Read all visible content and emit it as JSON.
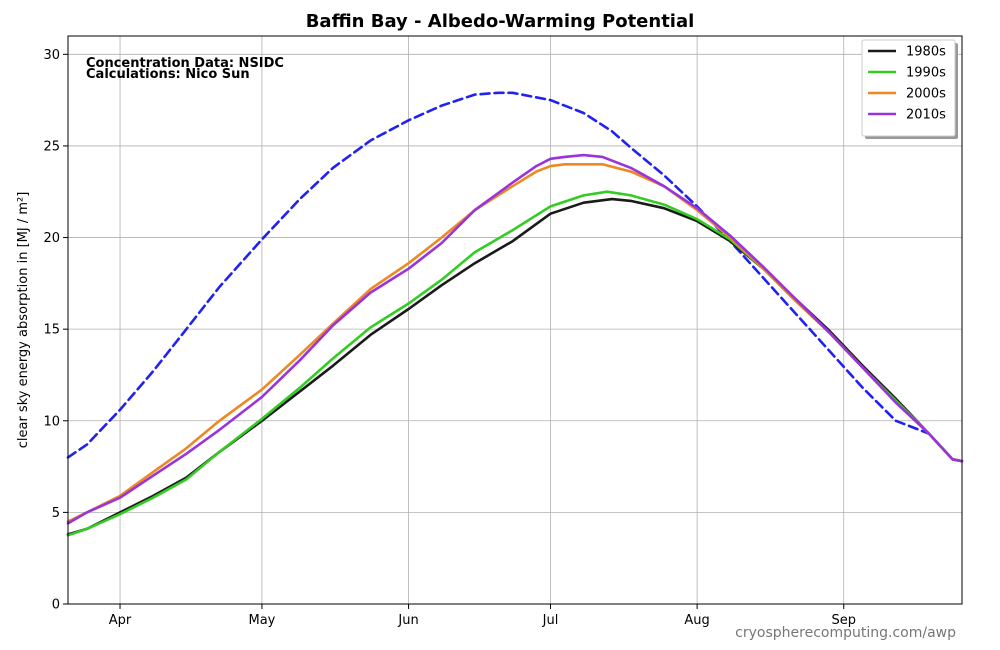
{
  "chart_data": {
    "type": "line",
    "title": "Baffin Bay - Albedo-Warming Potential",
    "ylabel": "clear sky energy absorption in  [MJ / m²]",
    "xlabel": "",
    "ylim": [
      0,
      31
    ],
    "yticks": [
      0,
      5,
      10,
      15,
      20,
      25,
      30
    ],
    "xlim_day_of_year": [
      81,
      270
    ],
    "xticks": [
      {
        "label": "Apr",
        "day": 92
      },
      {
        "label": "May",
        "day": 122
      },
      {
        "label": "Jun",
        "day": 153
      },
      {
        "label": "Jul",
        "day": 183
      },
      {
        "label": "Aug",
        "day": 214
      },
      {
        "label": "Sep",
        "day": 245
      }
    ],
    "grid": true,
    "legend_position": "top-right",
    "annotations": [
      "Concentration Data: NSIDC",
      "Calculations: Nico Sun"
    ],
    "credit": "cryospherecomputing.com/awp",
    "series": [
      {
        "name": "1980s",
        "color": "#1a1a1a",
        "dashed": false,
        "show_in_legend": true,
        "x": [
          81,
          85,
          92,
          99,
          106,
          113,
          122,
          130,
          137,
          145,
          153,
          160,
          167,
          175,
          183,
          190,
          196,
          200,
          207,
          214,
          221,
          228,
          235,
          242,
          249,
          256,
          263,
          268,
          270
        ],
        "y": [
          3.8,
          4.1,
          5.0,
          5.9,
          6.9,
          8.3,
          10.0,
          11.6,
          13.0,
          14.7,
          16.1,
          17.4,
          18.6,
          19.8,
          21.3,
          21.9,
          22.1,
          22.0,
          21.6,
          20.9,
          19.8,
          18.3,
          16.6,
          14.9,
          13.0,
          11.2,
          9.3,
          7.9,
          7.8
        ]
      },
      {
        "name": "1990s",
        "color": "#33cc22",
        "dashed": false,
        "show_in_legend": true,
        "x": [
          81,
          85,
          92,
          99,
          106,
          113,
          122,
          130,
          137,
          145,
          153,
          160,
          167,
          175,
          183,
          190,
          195,
          200,
          207,
          214,
          221,
          228,
          235,
          242,
          249,
          256,
          263,
          268,
          270
        ],
        "y": [
          3.75,
          4.1,
          4.9,
          5.8,
          6.8,
          8.3,
          10.1,
          11.8,
          13.4,
          15.1,
          16.4,
          17.7,
          19.2,
          20.4,
          21.7,
          22.3,
          22.5,
          22.3,
          21.8,
          21.0,
          19.9,
          18.3,
          16.5,
          14.8,
          12.9,
          11.1,
          9.3,
          7.9,
          7.8
        ]
      },
      {
        "name": "2000s",
        "color": "#ee8822",
        "dashed": false,
        "show_in_legend": true,
        "x": [
          81,
          85,
          92,
          99,
          106,
          113,
          122,
          130,
          137,
          145,
          153,
          160,
          167,
          175,
          180,
          183,
          186,
          190,
          194,
          200,
          207,
          214,
          221,
          228,
          235,
          242,
          249,
          256,
          263,
          268,
          270
        ],
        "y": [
          4.5,
          5.0,
          5.9,
          7.2,
          8.5,
          10.0,
          11.7,
          13.6,
          15.3,
          17.2,
          18.6,
          20.0,
          21.5,
          22.8,
          23.6,
          23.9,
          24.0,
          24.0,
          24.0,
          23.6,
          22.8,
          21.5,
          20.0,
          18.3,
          16.5,
          14.8,
          12.9,
          11.0,
          9.3,
          7.9,
          7.8
        ]
      },
      {
        "name": "2010s",
        "color": "#9933dd",
        "dashed": false,
        "show_in_legend": true,
        "x": [
          81,
          85,
          92,
          99,
          106,
          113,
          122,
          130,
          137,
          145,
          153,
          160,
          167,
          175,
          180,
          183,
          186,
          190,
          194,
          200,
          207,
          214,
          221,
          228,
          235,
          242,
          249,
          256,
          263,
          268,
          270
        ],
        "y": [
          4.4,
          5.0,
          5.8,
          7.0,
          8.2,
          9.5,
          11.3,
          13.3,
          15.2,
          17.0,
          18.3,
          19.7,
          21.5,
          23.0,
          23.9,
          24.3,
          24.4,
          24.5,
          24.4,
          23.8,
          22.8,
          21.6,
          20.1,
          18.4,
          16.6,
          14.8,
          12.9,
          11.0,
          9.3,
          7.9,
          7.8
        ]
      },
      {
        "name": "",
        "color": "#2222ee",
        "dashed": true,
        "show_in_legend": false,
        "x": [
          81,
          85,
          92,
          99,
          106,
          113,
          122,
          130,
          137,
          145,
          153,
          160,
          167,
          172,
          175,
          183,
          190,
          196,
          200,
          207,
          214,
          221,
          228,
          235,
          242,
          249,
          256,
          263,
          268,
          270
        ],
        "y": [
          8.0,
          8.7,
          10.6,
          12.7,
          15.0,
          17.3,
          19.9,
          22.1,
          23.8,
          25.3,
          26.4,
          27.2,
          27.8,
          27.9,
          27.9,
          27.5,
          26.8,
          25.8,
          24.9,
          23.4,
          21.7,
          19.8,
          17.8,
          15.8,
          13.8,
          11.8,
          10.0,
          9.3,
          7.9,
          7.8
        ]
      }
    ]
  }
}
